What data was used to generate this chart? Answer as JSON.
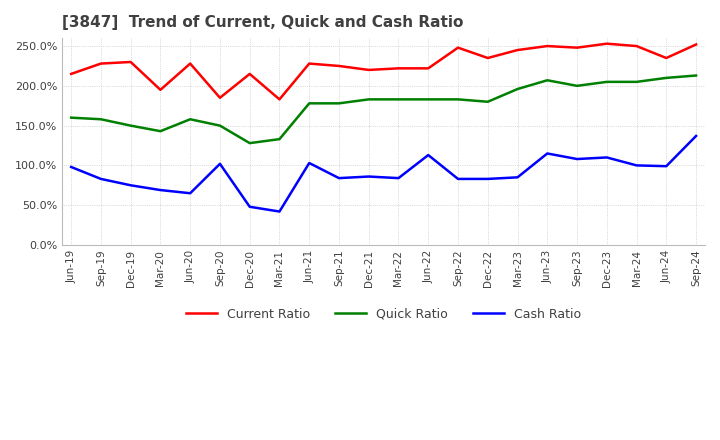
{
  "title": "[3847]  Trend of Current, Quick and Cash Ratio",
  "x_labels": [
    "Jun-19",
    "Sep-19",
    "Dec-19",
    "Mar-20",
    "Jun-20",
    "Sep-20",
    "Dec-20",
    "Mar-21",
    "Jun-21",
    "Sep-21",
    "Dec-21",
    "Mar-22",
    "Jun-22",
    "Sep-22",
    "Dec-22",
    "Mar-23",
    "Jun-23",
    "Sep-23",
    "Dec-23",
    "Mar-24",
    "Jun-24",
    "Sep-24"
  ],
  "current_ratio": [
    215,
    228,
    230,
    195,
    228,
    185,
    215,
    183,
    228,
    225,
    220,
    222,
    222,
    248,
    235,
    245,
    250,
    248,
    253,
    250,
    235,
    252
  ],
  "quick_ratio": [
    160,
    158,
    150,
    143,
    158,
    150,
    128,
    133,
    178,
    178,
    183,
    183,
    183,
    183,
    180,
    196,
    207,
    200,
    205,
    205,
    210,
    213
  ],
  "cash_ratio": [
    98,
    83,
    75,
    69,
    65,
    102,
    48,
    42,
    103,
    84,
    86,
    84,
    113,
    83,
    83,
    85,
    115,
    108,
    110,
    100,
    99,
    137
  ],
  "ylim": [
    0,
    260
  ],
  "yticks": [
    0,
    50,
    100,
    150,
    200,
    250
  ],
  "current_color": "#ff0000",
  "quick_color": "#008000",
  "cash_color": "#0000ff",
  "background_color": "#ffffff",
  "grid_color": "#aaaaaa",
  "title_color": "#404040",
  "legend_labels": [
    "Current Ratio",
    "Quick Ratio",
    "Cash Ratio"
  ]
}
